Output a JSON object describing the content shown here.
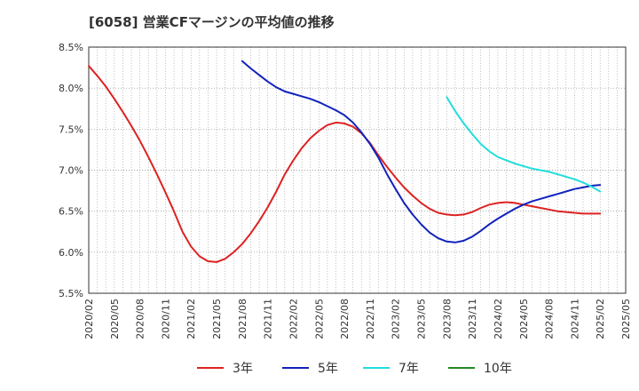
{
  "chart_data": {
    "type": "line",
    "title": "[6058]  営業CFマージンの平均値の推移",
    "xlabel": "",
    "ylabel": "",
    "x_range": [
      "2020/02",
      "2025/05"
    ],
    "ylim": [
      5.5,
      8.5
    ],
    "y_ticks": [
      "8.5%",
      "8.0%",
      "7.5%",
      "7.0%",
      "6.5%",
      "6.0%",
      "5.5%"
    ],
    "y_tick_values": [
      8.5,
      8.0,
      7.5,
      7.0,
      6.5,
      6.0,
      5.5
    ],
    "x_ticks": [
      "2020/02",
      "2020/05",
      "2020/08",
      "2020/11",
      "2021/02",
      "2021/05",
      "2021/08",
      "2021/11",
      "2022/02",
      "2022/05",
      "2022/08",
      "2022/11",
      "2023/02",
      "2023/05",
      "2023/08",
      "2023/11",
      "2024/02",
      "2024/05",
      "2024/08",
      "2024/11",
      "2025/02",
      "2025/05"
    ],
    "grid": true,
    "legend_position": "bottom",
    "series": [
      {
        "name": "3年",
        "color": "#dd2222",
        "x": [
          "2020/02",
          "2020/03",
          "2020/04",
          "2020/05",
          "2020/06",
          "2020/07",
          "2020/08",
          "2020/09",
          "2020/10",
          "2020/11",
          "2020/12",
          "2021/01",
          "2021/02",
          "2021/03",
          "2021/04",
          "2021/05",
          "2021/06",
          "2021/07",
          "2021/08",
          "2021/09",
          "2021/10",
          "2021/11",
          "2021/12",
          "2022/01",
          "2022/02",
          "2022/03",
          "2022/04",
          "2022/05",
          "2022/06",
          "2022/07",
          "2022/08",
          "2022/09",
          "2022/10",
          "2022/11",
          "2022/12",
          "2023/01",
          "2023/02",
          "2023/03",
          "2023/04",
          "2023/05",
          "2023/06",
          "2023/07",
          "2023/08",
          "2023/09",
          "2023/10",
          "2023/11",
          "2023/12",
          "2024/01",
          "2024/02",
          "2024/03",
          "2024/04",
          "2024/05",
          "2024/06",
          "2024/07",
          "2024/08",
          "2024/09",
          "2024/10",
          "2024/11",
          "2024/12",
          "2025/01",
          "2025/02"
        ],
        "values": [
          8.27,
          8.15,
          8.02,
          7.87,
          7.71,
          7.54,
          7.36,
          7.16,
          6.95,
          6.73,
          6.5,
          6.25,
          6.07,
          5.95,
          5.89,
          5.88,
          5.92,
          6.0,
          6.1,
          6.23,
          6.38,
          6.55,
          6.74,
          6.95,
          7.12,
          7.27,
          7.39,
          7.48,
          7.55,
          7.58,
          7.57,
          7.53,
          7.45,
          7.33,
          7.18,
          7.04,
          6.91,
          6.79,
          6.69,
          6.6,
          6.53,
          6.48,
          6.46,
          6.45,
          6.46,
          6.49,
          6.54,
          6.58,
          6.6,
          6.61,
          6.6,
          6.58,
          6.56,
          6.54,
          6.52,
          6.5,
          6.49,
          6.48,
          6.47,
          6.47,
          6.47
        ]
      },
      {
        "name": "5年",
        "color": "#1122bb",
        "x": [
          "2021/08",
          "2021/09",
          "2021/10",
          "2021/11",
          "2021/12",
          "2022/01",
          "2022/02",
          "2022/03",
          "2022/04",
          "2022/05",
          "2022/06",
          "2022/07",
          "2022/08",
          "2022/09",
          "2022/10",
          "2022/11",
          "2022/12",
          "2023/01",
          "2023/02",
          "2023/03",
          "2023/04",
          "2023/05",
          "2023/06",
          "2023/07",
          "2023/08",
          "2023/09",
          "2023/10",
          "2023/11",
          "2023/12",
          "2024/01",
          "2024/02",
          "2024/03",
          "2024/04",
          "2024/05",
          "2024/06",
          "2024/07",
          "2024/08",
          "2024/09",
          "2024/10",
          "2024/11",
          "2024/12",
          "2025/01",
          "2025/02"
        ],
        "values": [
          8.33,
          8.24,
          8.16,
          8.08,
          8.01,
          7.96,
          7.93,
          7.9,
          7.87,
          7.83,
          7.78,
          7.73,
          7.67,
          7.58,
          7.46,
          7.32,
          7.15,
          6.95,
          6.77,
          6.6,
          6.46,
          6.34,
          6.24,
          6.17,
          6.13,
          6.12,
          6.14,
          6.19,
          6.26,
          6.34,
          6.41,
          6.47,
          6.53,
          6.58,
          6.62,
          6.65,
          6.68,
          6.71,
          6.74,
          6.77,
          6.79,
          6.81,
          6.82
        ]
      },
      {
        "name": "7年",
        "color": "#22dddd",
        "x": [
          "2023/08",
          "2023/09",
          "2023/10",
          "2023/11",
          "2023/12",
          "2024/01",
          "2024/02",
          "2024/03",
          "2024/04",
          "2024/05",
          "2024/06",
          "2024/07",
          "2024/08",
          "2024/09",
          "2024/10",
          "2024/11",
          "2024/12",
          "2025/01",
          "2025/02"
        ],
        "values": [
          7.89,
          7.72,
          7.57,
          7.44,
          7.32,
          7.23,
          7.16,
          7.12,
          7.08,
          7.05,
          7.02,
          7.0,
          6.98,
          6.95,
          6.92,
          6.89,
          6.85,
          6.8,
          6.74
        ]
      },
      {
        "name": "10年",
        "color": "#228822",
        "x": [],
        "values": []
      }
    ]
  }
}
